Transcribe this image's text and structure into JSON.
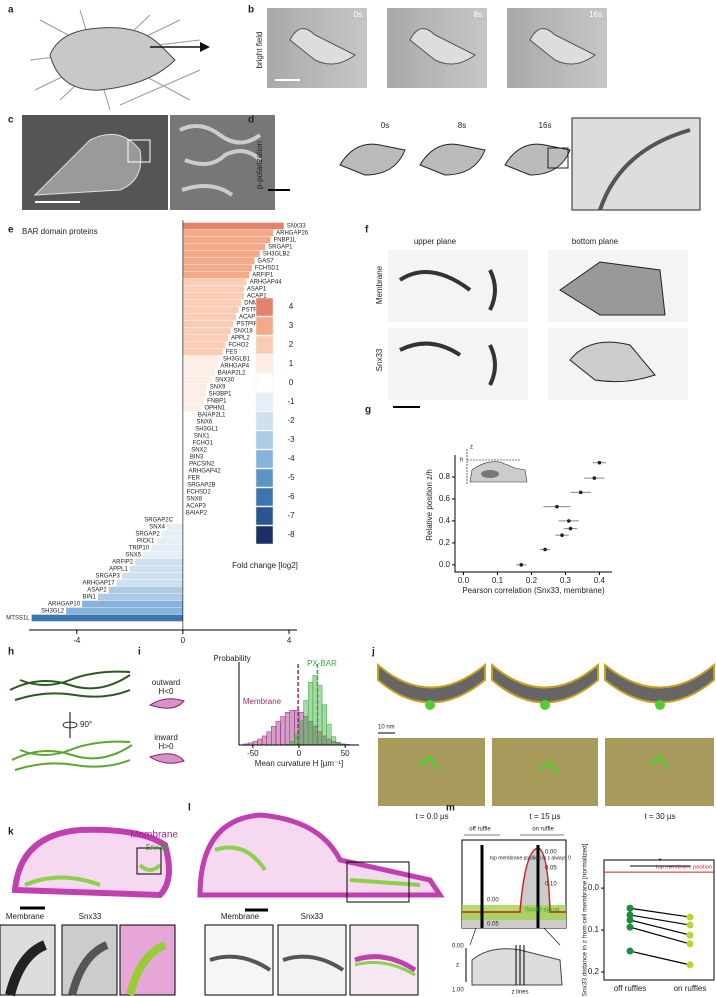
{
  "figure": {
    "a": {
      "label": "a"
    },
    "b": {
      "label": "b",
      "row_label": "bright field",
      "times": [
        "0s",
        "8s",
        "16s"
      ]
    },
    "c": {
      "label": "c"
    },
    "d": {
      "label": "d",
      "row_label": "p-polarization",
      "times": [
        "0s",
        "8s",
        "16s"
      ]
    },
    "e": {
      "label": "e",
      "type": "bar",
      "title": "BAR domain proteins",
      "categories": [
        "SNX33",
        "ARHGAP26",
        "FNBP1L",
        "SRGAP1",
        "SH3GLB2",
        "GAS7",
        "FCHSD1",
        "ARFIP1",
        "ARHGAP44",
        "ASAP1",
        "ACAP1",
        "DNMBP",
        "PSTPIP1",
        "ACAP2",
        "PSTPIP2",
        "SNX18",
        "APPL2",
        "FCHO2",
        "FES",
        "SH3GLB1",
        "ARHGAP4",
        "BAIAP2L2",
        "SNX30",
        "SNX9",
        "SH3BP1",
        "FNBP1",
        "OPHN1",
        "BAIAP2L1",
        "SNX6",
        "SH3GL1",
        "SNX1",
        "FCHO1",
        "SNX2",
        "BIN3",
        "PACSIN2",
        "ARHGAP42",
        "FER",
        "SRGAP2B",
        "FCHSD2",
        "SNX8",
        "ACAP3",
        "BAIAP2",
        "SRGAP2C",
        "SNX4",
        "SRGAP2",
        "PICK1",
        "TRIP10",
        "SNX5",
        "ARFIP2",
        "APPL1",
        "SRGAP3",
        "ARHGAP17",
        "ASAP2",
        "BIN1",
        "ARHGAP10",
        "SH3GL2",
        "MTSS1L"
      ],
      "values": [
        3.8,
        3.4,
        3.3,
        3.1,
        2.9,
        2.7,
        2.6,
        2.5,
        2.4,
        2.3,
        2.3,
        2.2,
        2.1,
        2.0,
        1.9,
        1.8,
        1.7,
        1.6,
        1.5,
        1.4,
        1.3,
        1.2,
        1.1,
        0.9,
        0.85,
        0.8,
        0.7,
        0.45,
        0.4,
        0.35,
        0.3,
        0.25,
        0.2,
        0.15,
        0.12,
        0.1,
        0.08,
        0.05,
        0.03,
        0.02,
        0.01,
        0.0,
        -0.3,
        -0.6,
        -0.8,
        -1.0,
        -1.2,
        -1.5,
        -1.8,
        -2.0,
        -2.3,
        -2.5,
        -2.8,
        -3.2,
        -3.8,
        -4.4,
        -5.7
      ],
      "xlim": [
        -5.8,
        4.3
      ],
      "xticks": [
        -4,
        0,
        4
      ],
      "legend": {
        "title": "Fold change [log2]",
        "levels": [
          4,
          3,
          2,
          1,
          0,
          -1,
          -2,
          -3,
          -4,
          -5,
          -6,
          -7,
          -8
        ],
        "colors": [
          "#e4826a",
          "#f3aa88",
          "#f9cdb5",
          "#fdeee5",
          "#ffffff",
          "#e6eff8",
          "#cfe0f0",
          "#aecbe4",
          "#85b3d9",
          "#5b95c6",
          "#3e75b0",
          "#2b5490",
          "#1b2f66"
        ]
      }
    },
    "f": {
      "label": "f",
      "columns": [
        "upper plane",
        "bottom plane"
      ],
      "rows": [
        "Membrane",
        "Snx33"
      ]
    },
    "g": {
      "label": "g",
      "type": "scatter",
      "xlabel": "Pearson correlation (Snx33, membrane)",
      "ylabel": "Relative position z/h",
      "inset_labels": [
        "z",
        "h"
      ],
      "x": [
        0.4,
        0.385,
        0.345,
        0.275,
        0.31,
        0.315,
        0.29,
        0.24,
        0.17
      ],
      "y": [
        0.93,
        0.79,
        0.66,
        0.53,
        0.4,
        0.33,
        0.27,
        0.14,
        0.0
      ],
      "xerr": [
        0.02,
        0.03,
        0.03,
        0.04,
        0.03,
        0.02,
        0.02,
        0.015,
        0.015
      ],
      "color": "#222222",
      "xlim": [
        -0.025,
        0.437
      ],
      "xticks": [
        {
          "value": 0,
          "label": "0.0"
        },
        {
          "value": 0.1,
          "label": "0.1"
        },
        {
          "value": 0.2,
          "label": "0.2"
        },
        {
          "value": 0.3,
          "label": "0.3"
        },
        {
          "value": 0.4,
          "label": "0.4"
        }
      ],
      "ylim": [
        -0.065,
        1.0
      ],
      "yticks": [
        {
          "value": 0,
          "label": "0.0"
        },
        {
          "value": 0.2,
          "label": "0.2"
        },
        {
          "value": 0.4,
          "label": "0.4"
        },
        {
          "value": 0.6,
          "label": "0.6"
        },
        {
          "value": 0.8,
          "label": "0.8"
        }
      ]
    },
    "h": {
      "label": "h",
      "rotation": "90°"
    },
    "i": {
      "label": "i",
      "type": "histogram",
      "ylabel": "Probability",
      "xlabel": "Mean curvature H [µm⁻¹]",
      "outward": [
        "outward",
        "H<0"
      ],
      "inward": [
        "inward",
        "H>0"
      ],
      "bins": [
        -60,
        -55,
        -50,
        -45,
        -40,
        -35,
        -30,
        -25,
        -20,
        -15,
        -10,
        -5,
        0,
        5,
        10,
        15,
        20,
        25,
        30,
        35,
        40,
        45,
        50,
        55,
        60
      ],
      "series": [
        {
          "name": "Membrane",
          "color": "#9c2a7e",
          "mean": -1,
          "values": [
            0.016,
            0.03,
            0.052,
            0.086,
            0.13,
            0.19,
            0.27,
            0.34,
            0.41,
            0.47,
            0.5,
            0.5,
            0.47,
            0.41,
            0.34,
            0.27,
            0.19,
            0.13,
            0.086,
            0.052,
            0.03,
            0.016,
            0.008,
            0.004
          ]
        },
        {
          "name": "PX-BAR",
          "color": "#3aa63a",
          "mean": 20,
          "values": [
            0,
            0,
            0,
            0,
            0,
            0,
            0,
            0,
            0,
            0.013,
            0.05,
            0.15,
            0.35,
            0.64,
            0.9,
            1.0,
            0.86,
            0.58,
            0.3,
            0.12,
            0.04,
            0.01,
            0,
            0
          ]
        }
      ],
      "xlim": [
        -65,
        65
      ],
      "xticks": [
        -50,
        0,
        50
      ],
      "ylim": [
        0,
        1.05
      ]
    },
    "j": {
      "label": "j",
      "scale": "10 nm",
      "times": [
        "t = 0.0 µs",
        "t = 15 µs",
        "t = 30 µs"
      ]
    },
    "k": {
      "label": "k",
      "overlay": [
        "Membrane",
        "Snx33"
      ],
      "crops": [
        "Membrane",
        "Snx33"
      ]
    },
    "l": {
      "label": "l",
      "crops": [
        "Membrane",
        "Snx33"
      ]
    },
    "m": {
      "label": "m",
      "schematic": {
        "off": "off ruffle",
        "on": "on ruffle",
        "note": "top membrane position in z always 0",
        "ticks": [
          "0.00",
          "0.05",
          "0.10"
        ],
        "left_ticks": [
          "0.00",
          "0.05"
        ],
        "signal": "Snx33 signal",
        "z": "z",
        "z_ticks": [
          "0.00",
          "1.00"
        ],
        "lines": "z lines"
      },
      "plot": {
        "type": "paired",
        "ylabel": "Snx33 distance in z from cell membrane [normalized]",
        "categories": [
          "off ruffles",
          "on ruffles"
        ],
        "pairs": [
          [
            0.048,
            0.069
          ],
          [
            0.064,
            0.088
          ],
          [
            0.076,
            0.112
          ],
          [
            0.093,
            0.133
          ],
          [
            0.15,
            0.183
          ]
        ],
        "colors": [
          "#1e8a3a",
          "#b5d92a"
        ],
        "significance": "*",
        "reference_label": "top membrane position",
        "reference": -0.038,
        "ylim": [
          -0.067,
          0.219
        ],
        "yticks": [
          {
            "value": 0,
            "label": "0.0"
          },
          {
            "value": 0.1,
            "label": "0.1"
          },
          {
            "value": 0.2,
            "label": "0.2"
          }
        ]
      }
    }
  }
}
